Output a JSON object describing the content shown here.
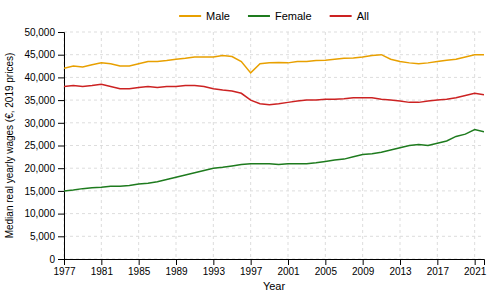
{
  "chart_data": {
    "type": "line",
    "x": [
      1977,
      1978,
      1979,
      1980,
      1981,
      1982,
      1983,
      1984,
      1985,
      1986,
      1987,
      1988,
      1989,
      1990,
      1991,
      1992,
      1993,
      1994,
      1995,
      1996,
      1997,
      1998,
      1999,
      2000,
      2001,
      2002,
      2003,
      2004,
      2005,
      2006,
      2007,
      2008,
      2009,
      2010,
      2011,
      2012,
      2013,
      2014,
      2015,
      2016,
      2017,
      2018,
      2019,
      2020,
      2021,
      2022
    ],
    "series": [
      {
        "name": "Male",
        "color": "#E8A000",
        "values": [
          42000,
          42500,
          42300,
          42800,
          43200,
          43000,
          42500,
          42500,
          43000,
          43500,
          43500,
          43700,
          44000,
          44200,
          44500,
          44500,
          44500,
          44800,
          44600,
          43500,
          41000,
          43000,
          43200,
          43300,
          43200,
          43500,
          43500,
          43700,
          43800,
          44000,
          44200,
          44300,
          44500,
          44800,
          45000,
          44000,
          43500,
          43200,
          43000,
          43200,
          43500,
          43800,
          44000,
          44500,
          45000,
          45000
        ]
      },
      {
        "name": "Female",
        "color": "#1E7B1E",
        "values": [
          15000,
          15200,
          15500,
          15700,
          15800,
          16000,
          16000,
          16200,
          16500,
          16700,
          17000,
          17500,
          18000,
          18500,
          19000,
          19500,
          20000,
          20200,
          20500,
          20800,
          21000,
          21000,
          21000,
          20800,
          21000,
          21000,
          21000,
          21200,
          21500,
          21800,
          22000,
          22500,
          23000,
          23200,
          23500,
          24000,
          24500,
          25000,
          25200,
          25000,
          25500,
          26000,
          27000,
          27500,
          28500,
          28000
        ]
      },
      {
        "name": "All",
        "color": "#CC2222",
        "values": [
          38000,
          38200,
          38000,
          38200,
          38500,
          38000,
          37500,
          37500,
          37800,
          38000,
          37800,
          38000,
          38000,
          38200,
          38200,
          38000,
          37500,
          37200,
          37000,
          36500,
          35000,
          34200,
          34000,
          34200,
          34500,
          34800,
          35000,
          35000,
          35200,
          35200,
          35300,
          35500,
          35500,
          35500,
          35200,
          35000,
          34800,
          34500,
          34500,
          34800,
          35000,
          35200,
          35500,
          36000,
          36500,
          36200
        ]
      }
    ],
    "xlabel": "Year",
    "ylabel": "Median real yearly wages (€, 2019 prices)",
    "xlim": [
      1977,
      2022
    ],
    "xticks": [
      1977,
      1981,
      1985,
      1989,
      1993,
      1997,
      2001,
      2005,
      2009,
      2013,
      2017,
      2021
    ],
    "ylim": [
      0,
      50000
    ],
    "yticks": [
      0,
      {
        "value": 5000,
        "label": "5,000"
      },
      {
        "value": 10000,
        "label": "10,000"
      },
      {
        "value": 15000,
        "label": "15,000"
      },
      {
        "value": 20000,
        "label": "20,000"
      },
      {
        "value": 25000,
        "label": "25,000"
      },
      {
        "value": 30000,
        "label": "30,000"
      },
      {
        "value": 35000,
        "label": "35,000"
      },
      {
        "value": 40000,
        "label": "40,000"
      },
      {
        "value": 45000,
        "label": "45,000"
      },
      {
        "value": 50000,
        "label": "50,000"
      }
    ],
    "grid": true,
    "legend": "top"
  }
}
